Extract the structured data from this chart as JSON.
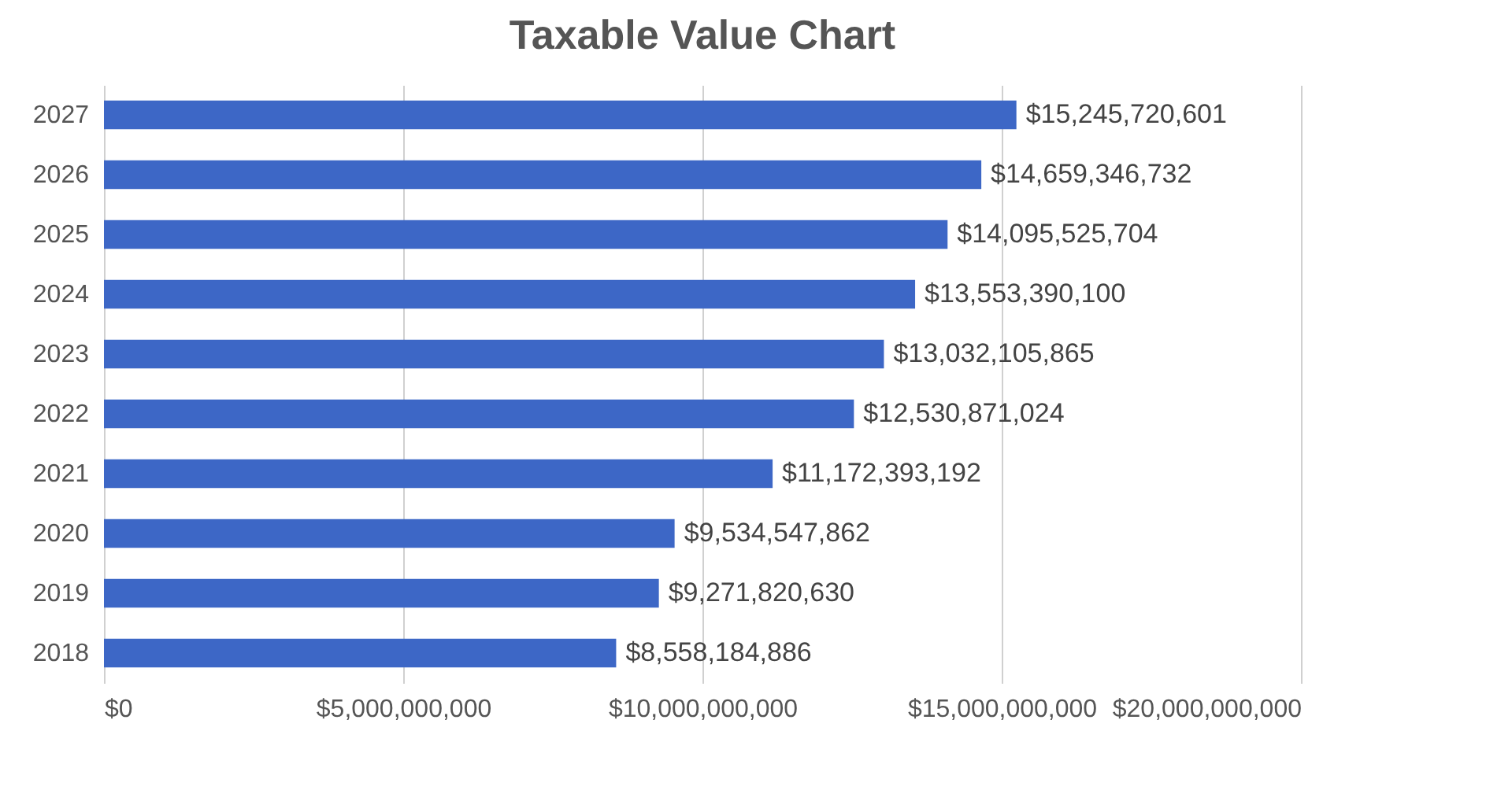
{
  "chart_data": {
    "type": "bar",
    "orientation": "horizontal",
    "title": "Taxable Value Chart",
    "categories": [
      "2027",
      "2026",
      "2025",
      "2024",
      "2023",
      "2022",
      "2021",
      "2020",
      "2019",
      "2018"
    ],
    "values": [
      15245720601,
      14659346732,
      14095525704,
      13553390100,
      13032105865,
      12530871024,
      11172393192,
      9534547862,
      9271820630,
      8558184886
    ],
    "value_labels": [
      "$15,245,720,601",
      "$14,659,346,732",
      "$14,095,525,704",
      "$13,553,390,100",
      "$13,032,105,865",
      "$12,530,871,024",
      "$11,172,393,192",
      "$9,534,547,862",
      "$9,271,820,630",
      "$8,558,184,886"
    ],
    "color": "#3d67c6",
    "xlim": [
      0,
      20000000000
    ],
    "xticks": [
      {
        "value": 0,
        "label": "$0"
      },
      {
        "value": 5000000000,
        "label": "$5,000,000,000"
      },
      {
        "value": 10000000000,
        "label": "$10,000,000,000"
      },
      {
        "value": 15000000000,
        "label": "$15,000,000,000"
      },
      {
        "value": 20000000000,
        "label": "$20,000,000,000"
      }
    ],
    "grid": "x"
  }
}
